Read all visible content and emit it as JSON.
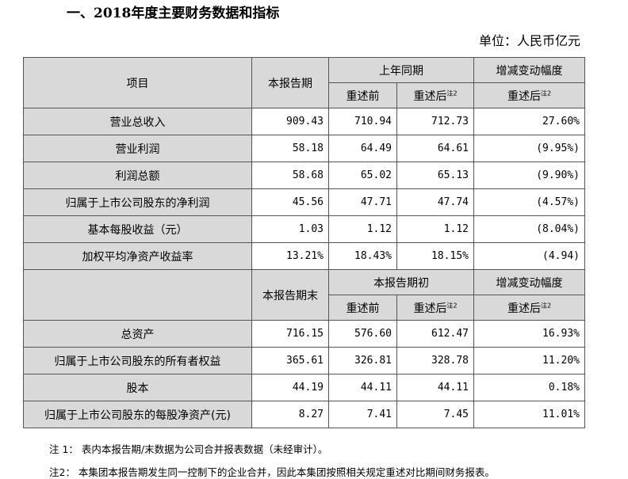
{
  "title": "一、2018年度主要财务数据和指标",
  "unit": "单位：人民币亿元",
  "header1": {
    "item": "项目",
    "current": "本报告期",
    "prior": "上年同期",
    "change": "增减变动幅度",
    "before": "重述前",
    "after": "重述后",
    "note": "注2"
  },
  "rows1": [
    {
      "label": "营业总收入",
      "cur": "909.43",
      "before": "710.94",
      "after": "712.73",
      "chg": "27.60%"
    },
    {
      "label": "营业利润",
      "cur": "58.18",
      "before": "64.49",
      "after": "64.61",
      "chg": "(9.95%)"
    },
    {
      "label": "利润总额",
      "cur": "58.68",
      "before": "65.02",
      "after": "65.13",
      "chg": "(9.90%)"
    },
    {
      "label": "归属于上市公司股东的净利润",
      "cur": "45.56",
      "before": "47.71",
      "after": "47.74",
      "chg": "(4.57%)"
    },
    {
      "label": "基本每股收益（元）",
      "cur": "1.03",
      "before": "1.12",
      "after": "1.12",
      "chg": "(8.04%)"
    },
    {
      "label": "加权平均净资产收益率",
      "cur": "13.21%",
      "before": "18.43%",
      "after": "18.15%",
      "chg": "(4.94)"
    }
  ],
  "header2": {
    "current": "本报告期末",
    "prior": "本报告期初",
    "change": "增减变动幅度",
    "before": "重述前",
    "after": "重述后",
    "note": "注2"
  },
  "rows2": [
    {
      "label": "总资产",
      "cur": "716.15",
      "before": "576.60",
      "after": "612.47",
      "chg": "16.93%"
    },
    {
      "label": "归属于上市公司股东的所有者权益",
      "cur": "365.61",
      "before": "326.81",
      "after": "328.78",
      "chg": "11.20%"
    },
    {
      "label": "股本",
      "cur": "44.19",
      "before": "44.11",
      "after": "44.11",
      "chg": "0.18%"
    },
    {
      "label": "归属于上市公司股东的每股净资产(元)",
      "cur": "8.27",
      "before": "7.41",
      "after": "7.45",
      "chg": "11.01%"
    }
  ],
  "notes": [
    "注 1：  表内本报告期/末数据为公司合并报表数据（未经审计）。",
    "注2：  本集团本报告期发生同一控制下的企业合并，因此本集团按照相关规定重述对比期间财务报表。"
  ]
}
